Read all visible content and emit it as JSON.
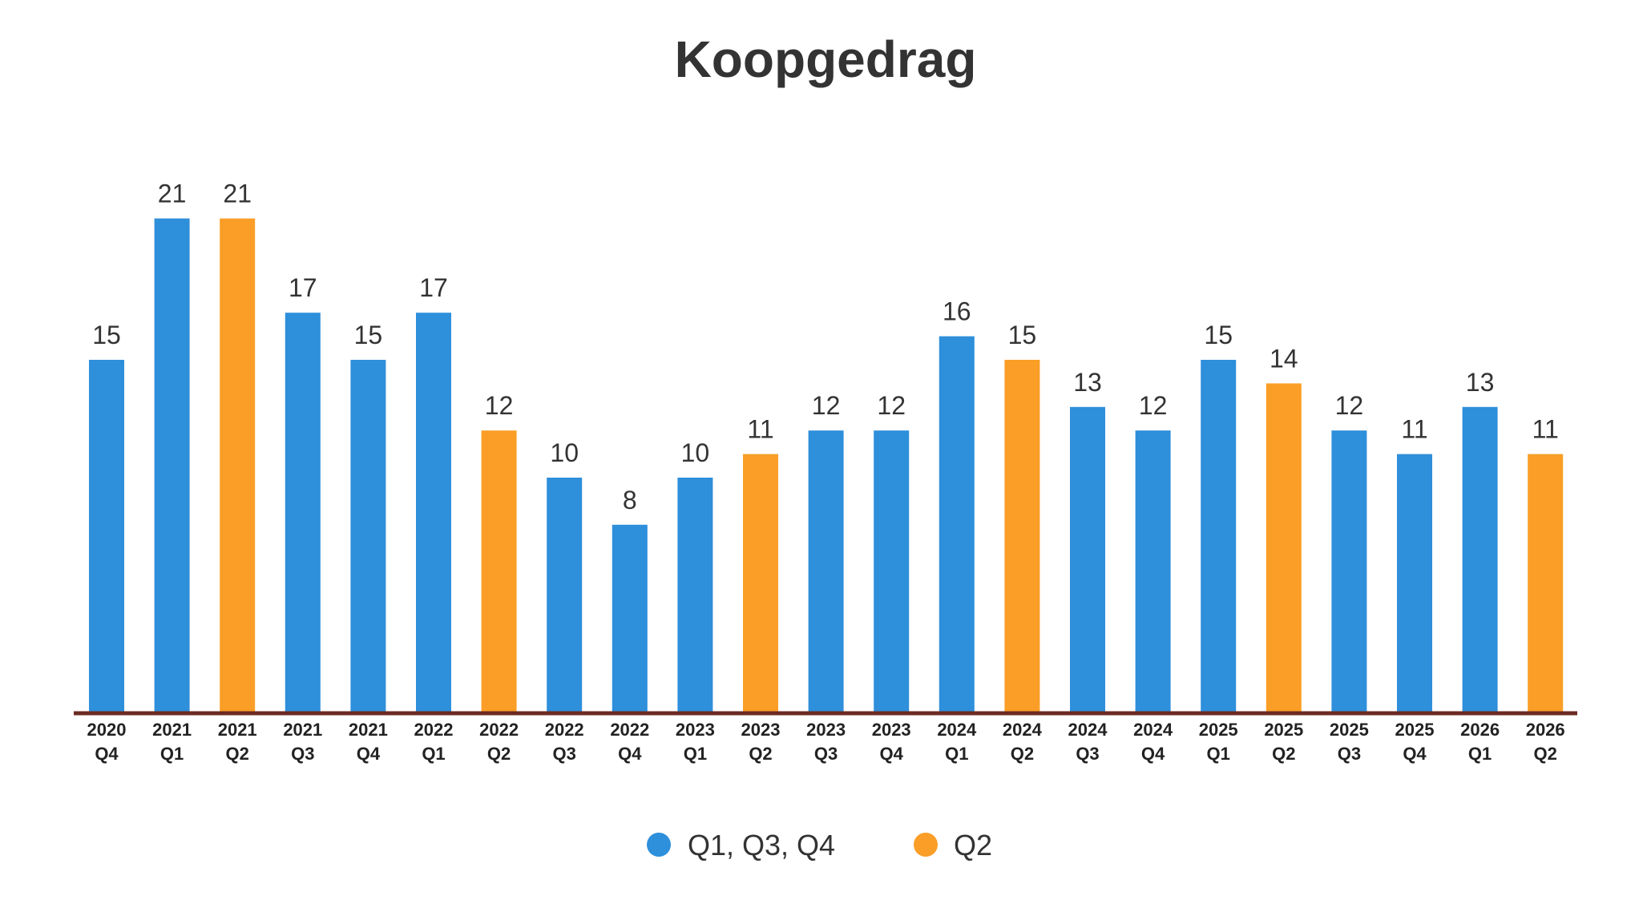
{
  "chart_data": {
    "type": "bar",
    "title": "Koopgedrag",
    "categories": [
      [
        "2020",
        "Q4"
      ],
      [
        "2021",
        "Q1"
      ],
      [
        "2021",
        "Q2"
      ],
      [
        "2021",
        "Q3"
      ],
      [
        "2021",
        "Q4"
      ],
      [
        "2022",
        "Q1"
      ],
      [
        "2022",
        "Q2"
      ],
      [
        "2022",
        "Q3"
      ],
      [
        "2022",
        "Q4"
      ],
      [
        "2023",
        "Q1"
      ],
      [
        "2023",
        "Q2"
      ],
      [
        "2023",
        "Q3"
      ],
      [
        "2023",
        "Q4"
      ],
      [
        "2024",
        "Q1"
      ],
      [
        "2024",
        "Q2"
      ],
      [
        "2024",
        "Q3"
      ],
      [
        "2024",
        "Q4"
      ],
      [
        "2025",
        "Q1"
      ],
      [
        "2025",
        "Q2"
      ],
      [
        "2025",
        "Q3"
      ],
      [
        "2025",
        "Q4"
      ],
      [
        "2026",
        "Q1"
      ],
      [
        "2026",
        "Q2"
      ]
    ],
    "values": [
      15,
      21,
      21,
      17,
      15,
      17,
      12,
      10,
      8,
      10,
      11,
      12,
      12,
      16,
      15,
      13,
      12,
      15,
      14,
      12,
      11,
      13,
      11
    ],
    "series_assignment": [
      "Q1, Q3, Q4",
      "Q1, Q3, Q4",
      "Q2",
      "Q1, Q3, Q4",
      "Q1, Q3, Q4",
      "Q1, Q3, Q4",
      "Q2",
      "Q1, Q3, Q4",
      "Q1, Q3, Q4",
      "Q1, Q3, Q4",
      "Q2",
      "Q1, Q3, Q4",
      "Q1, Q3, Q4",
      "Q1, Q3, Q4",
      "Q2",
      "Q1, Q3, Q4",
      "Q1, Q3, Q4",
      "Q1, Q3, Q4",
      "Q2",
      "Q1, Q3, Q4",
      "Q1, Q3, Q4",
      "Q1, Q3, Q4",
      "Q2"
    ],
    "legend": [
      {
        "name": "Q1, Q3, Q4",
        "color": "#2E8FDB"
      },
      {
        "name": "Q2",
        "color": "#FA9E27"
      }
    ],
    "legend_position": "bottom",
    "ylim": [
      0,
      21
    ],
    "data_labels": true,
    "grid": false,
    "xlabel": "",
    "ylabel": ""
  },
  "colors": {
    "axis_line": "#6B2A22",
    "text": "#333333"
  }
}
